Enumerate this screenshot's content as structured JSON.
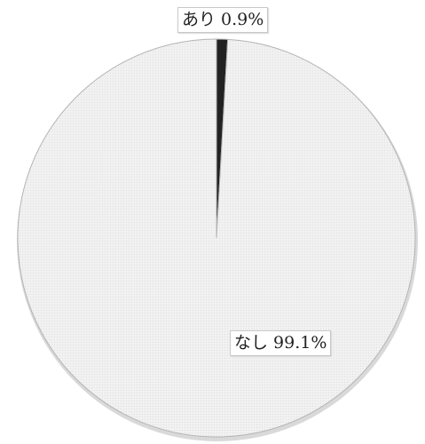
{
  "chart_data": {
    "type": "pie",
    "title": "",
    "slices": [
      {
        "label": "あり",
        "value": 0.9,
        "display": "あり 0.9%",
        "color": "#222222"
      },
      {
        "label": "なし",
        "value": 99.1,
        "display": "なし 99.1%",
        "color": "#eeeeee"
      }
    ],
    "start_angle_deg": 0,
    "direction": "clockwise",
    "edge_color": "#b4b4b4",
    "labels_inside": true,
    "legend": "none"
  }
}
